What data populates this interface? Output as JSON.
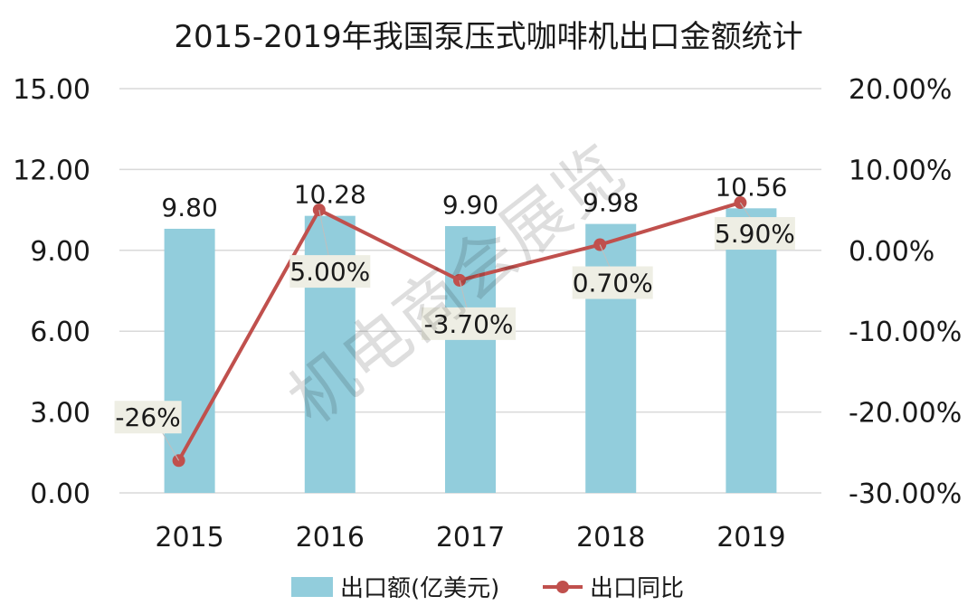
{
  "chart_data": {
    "type": "bar",
    "title": "2015-2019年我国泵压式咖啡机出口金额统计",
    "categories": [
      "2015",
      "2016",
      "2017",
      "2018",
      "2019"
    ],
    "series": [
      {
        "name": "出口额(亿美元)",
        "type": "bar",
        "axis": "left",
        "values": [
          9.8,
          10.28,
          9.9,
          9.98,
          10.56
        ],
        "labels": [
          "9.80",
          "10.28",
          "9.90",
          "9.98",
          "10.56"
        ],
        "color": "#92cddc"
      },
      {
        "name": "出口同比",
        "type": "line",
        "axis": "right",
        "values": [
          -26.0,
          5.0,
          -3.7,
          0.7,
          5.9
        ],
        "labels": [
          "-26%",
          "5.00%",
          "-3.70%",
          "0.70%",
          "5.90%"
        ],
        "color": "#c0504d"
      }
    ],
    "y_left": {
      "ylim": [
        0,
        15
      ],
      "ticks": [
        "0.00",
        "3.00",
        "6.00",
        "9.00",
        "12.00",
        "15.00"
      ]
    },
    "y_right": {
      "ylim": [
        -30,
        20
      ],
      "ticks": [
        "-30.00%",
        "-20.00%",
        "-10.00%",
        "0.00%",
        "10.00%",
        "20.00%"
      ]
    },
    "grid": true,
    "legend_position": "bottom"
  },
  "watermark": "机电商会展览",
  "colors": {
    "label_box": "#eeeee4",
    "grid": "#d9d9d9"
  }
}
